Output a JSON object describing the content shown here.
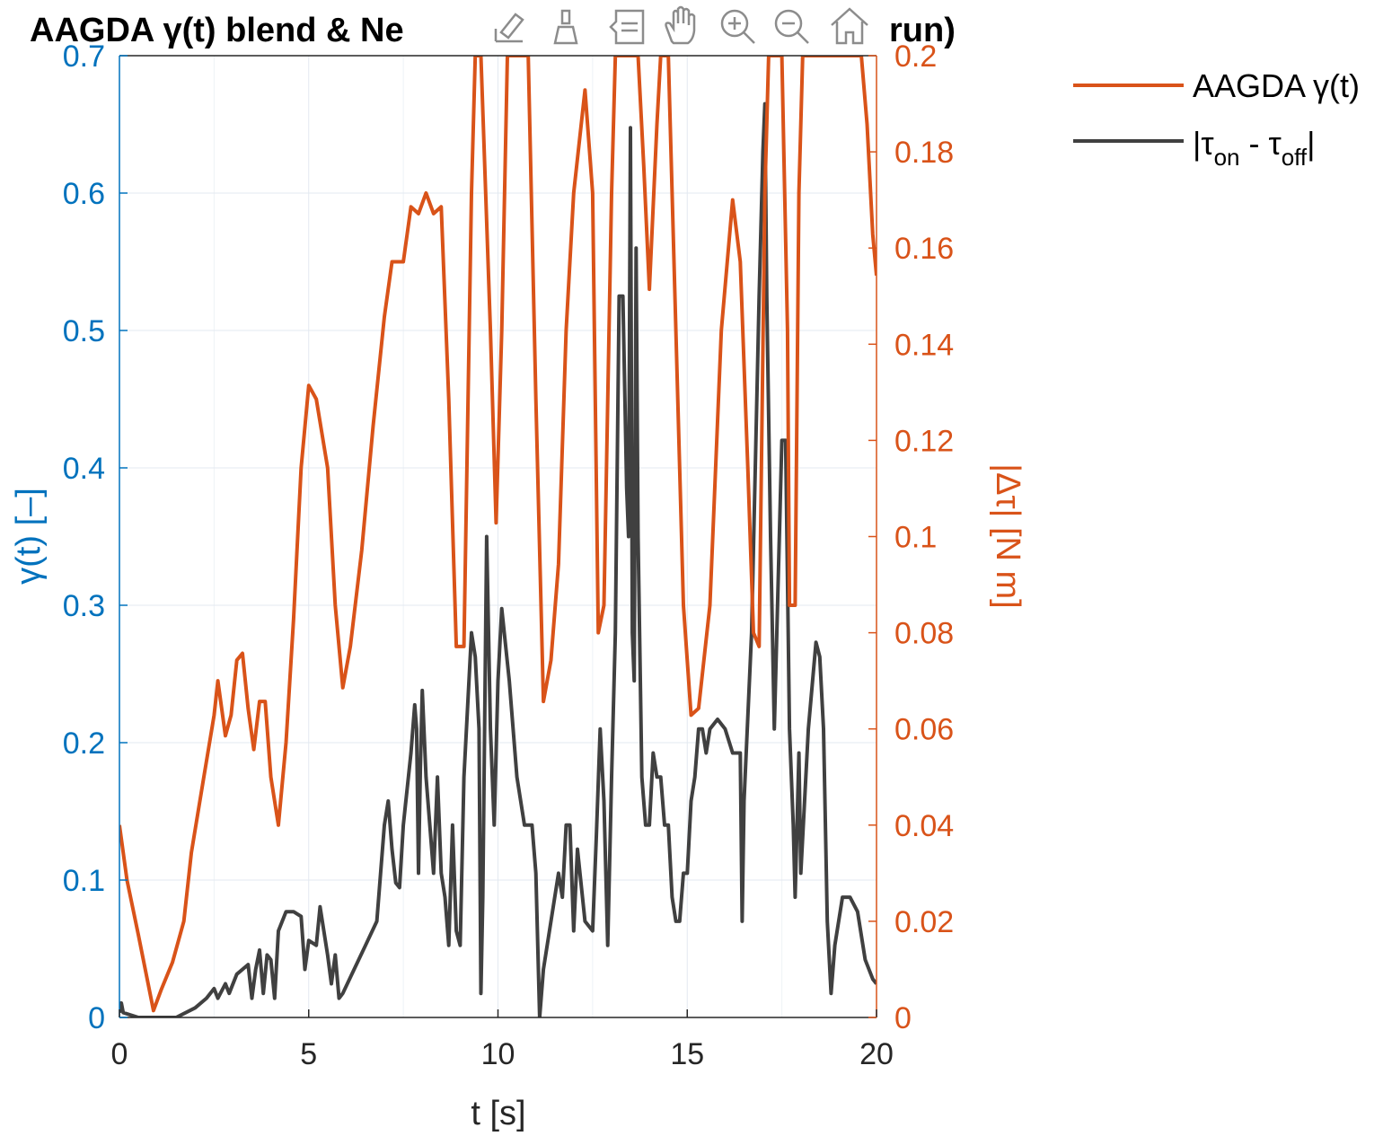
{
  "chart_data": {
    "type": "line",
    "title_left": "AAGDA γ(t) blend & Ne",
    "title_right": "run)",
    "xlabel": "t [s]",
    "ylabel_left": "γ(t) [–]",
    "ylabel_right": "|Δτ| [N m]",
    "xlim": [
      0,
      20
    ],
    "ylim_left": [
      0,
      0.7
    ],
    "ylim_right": [
      0,
      0.2
    ],
    "x_ticks": [
      "0",
      "5",
      "10",
      "15",
      "20"
    ],
    "y_left_ticks": [
      "0",
      "0.1",
      "0.2",
      "0.3",
      "0.4",
      "0.5",
      "0.6",
      "0.7"
    ],
    "y_right_ticks": [
      "0",
      "0.02",
      "0.04",
      "0.06",
      "0.08",
      "0.1",
      "0.12",
      "0.14",
      "0.16",
      "0.18",
      "0.2"
    ],
    "grid": true,
    "legend_position": "outside-right-top",
    "series": [
      {
        "name": "AAGDA γ(t)",
        "axis": "left",
        "color": "#D95319",
        "points": [
          [
            0,
            0.14
          ],
          [
            0.2,
            0.1
          ],
          [
            0.5,
            0.06
          ],
          [
            0.9,
            0.005
          ],
          [
            1.1,
            0.02
          ],
          [
            1.4,
            0.04
          ],
          [
            1.7,
            0.07
          ],
          [
            1.9,
            0.12
          ],
          [
            2.2,
            0.17
          ],
          [
            2.5,
            0.22
          ],
          [
            2.6,
            0.245
          ],
          [
            2.8,
            0.205
          ],
          [
            2.95,
            0.22
          ],
          [
            3.1,
            0.26
          ],
          [
            3.25,
            0.265
          ],
          [
            3.4,
            0.225
          ],
          [
            3.55,
            0.195
          ],
          [
            3.7,
            0.23
          ],
          [
            3.85,
            0.23
          ],
          [
            4.0,
            0.175
          ],
          [
            4.2,
            0.14
          ],
          [
            4.4,
            0.2
          ],
          [
            4.6,
            0.29
          ],
          [
            4.8,
            0.4
          ],
          [
            5.0,
            0.46
          ],
          [
            5.2,
            0.45
          ],
          [
            5.5,
            0.4
          ],
          [
            5.7,
            0.3
          ],
          [
            5.9,
            0.24
          ],
          [
            6.1,
            0.27
          ],
          [
            6.4,
            0.34
          ],
          [
            6.7,
            0.43
          ],
          [
            7.0,
            0.51
          ],
          [
            7.2,
            0.55
          ],
          [
            7.5,
            0.55
          ],
          [
            7.7,
            0.59
          ],
          [
            7.9,
            0.585
          ],
          [
            8.1,
            0.6
          ],
          [
            8.3,
            0.585
          ],
          [
            8.5,
            0.59
          ],
          [
            8.7,
            0.45
          ],
          [
            8.9,
            0.27
          ],
          [
            9.1,
            0.27
          ],
          [
            9.3,
            0.6
          ],
          [
            9.4,
            0.7
          ],
          [
            9.55,
            0.7
          ],
          [
            9.8,
            0.5
          ],
          [
            9.95,
            0.36
          ],
          [
            10.1,
            0.5
          ],
          [
            10.25,
            0.7
          ],
          [
            10.8,
            0.7
          ],
          [
            11.0,
            0.45
          ],
          [
            11.2,
            0.23
          ],
          [
            11.4,
            0.26
          ],
          [
            11.6,
            0.33
          ],
          [
            11.8,
            0.5
          ],
          [
            12.0,
            0.6
          ],
          [
            12.3,
            0.675
          ],
          [
            12.5,
            0.6
          ],
          [
            12.65,
            0.28
          ],
          [
            12.8,
            0.3
          ],
          [
            13.0,
            0.6
          ],
          [
            13.1,
            0.7
          ],
          [
            13.4,
            0.7
          ],
          [
            13.7,
            0.7
          ],
          [
            13.85,
            0.62
          ],
          [
            14.0,
            0.53
          ],
          [
            14.2,
            0.65
          ],
          [
            14.3,
            0.7
          ],
          [
            14.5,
            0.7
          ],
          [
            14.7,
            0.5
          ],
          [
            14.9,
            0.3
          ],
          [
            15.1,
            0.22
          ],
          [
            15.3,
            0.225
          ],
          [
            15.6,
            0.3
          ],
          [
            15.9,
            0.5
          ],
          [
            16.2,
            0.595
          ],
          [
            16.4,
            0.55
          ],
          [
            16.6,
            0.4
          ],
          [
            16.75,
            0.28
          ],
          [
            16.9,
            0.27
          ],
          [
            17.05,
            0.6
          ],
          [
            17.15,
            0.7
          ],
          [
            17.5,
            0.7
          ],
          [
            17.65,
            0.5
          ],
          [
            17.7,
            0.3
          ],
          [
            17.85,
            0.3
          ],
          [
            17.95,
            0.6
          ],
          [
            18.05,
            0.7
          ],
          [
            19.6,
            0.7
          ],
          [
            19.75,
            0.65
          ],
          [
            19.9,
            0.57
          ],
          [
            20.0,
            0.54
          ]
        ]
      },
      {
        "name": "|τon - τoff|",
        "axis": "right",
        "color": "#404040",
        "points": [
          [
            0,
            0.001
          ],
          [
            0.05,
            0.003
          ],
          [
            0.1,
            0.001
          ],
          [
            0.5,
            0.0
          ],
          [
            1.0,
            0.0
          ],
          [
            1.5,
            0.0
          ],
          [
            2.0,
            0.002
          ],
          [
            2.3,
            0.004
          ],
          [
            2.5,
            0.006
          ],
          [
            2.6,
            0.004
          ],
          [
            2.8,
            0.007
          ],
          [
            2.9,
            0.005
          ],
          [
            3.1,
            0.009
          ],
          [
            3.4,
            0.011
          ],
          [
            3.5,
            0.004
          ],
          [
            3.6,
            0.01
          ],
          [
            3.7,
            0.014
          ],
          [
            3.8,
            0.005
          ],
          [
            3.9,
            0.013
          ],
          [
            4.0,
            0.012
          ],
          [
            4.1,
            0.004
          ],
          [
            4.2,
            0.018
          ],
          [
            4.4,
            0.022
          ],
          [
            4.6,
            0.022
          ],
          [
            4.8,
            0.021
          ],
          [
            4.9,
            0.01
          ],
          [
            5.0,
            0.016
          ],
          [
            5.2,
            0.015
          ],
          [
            5.3,
            0.023
          ],
          [
            5.5,
            0.013
          ],
          [
            5.6,
            0.007
          ],
          [
            5.7,
            0.013
          ],
          [
            5.8,
            0.004
          ],
          [
            5.9,
            0.005
          ],
          [
            6.2,
            0.01
          ],
          [
            6.5,
            0.015
          ],
          [
            6.8,
            0.02
          ],
          [
            7.0,
            0.04
          ],
          [
            7.1,
            0.045
          ],
          [
            7.2,
            0.035
          ],
          [
            7.3,
            0.028
          ],
          [
            7.4,
            0.027
          ],
          [
            7.5,
            0.04
          ],
          [
            7.7,
            0.055
          ],
          [
            7.8,
            0.065
          ],
          [
            7.85,
            0.06
          ],
          [
            7.9,
            0.03
          ],
          [
            7.95,
            0.052
          ],
          [
            8.0,
            0.068
          ],
          [
            8.1,
            0.05
          ],
          [
            8.2,
            0.04
          ],
          [
            8.3,
            0.03
          ],
          [
            8.4,
            0.05
          ],
          [
            8.5,
            0.03
          ],
          [
            8.6,
            0.025
          ],
          [
            8.7,
            0.015
          ],
          [
            8.8,
            0.04
          ],
          [
            8.9,
            0.018
          ],
          [
            9.0,
            0.015
          ],
          [
            9.1,
            0.05
          ],
          [
            9.2,
            0.065
          ],
          [
            9.3,
            0.08
          ],
          [
            9.4,
            0.075
          ],
          [
            9.5,
            0.06
          ],
          [
            9.55,
            0.005
          ],
          [
            9.6,
            0.025
          ],
          [
            9.7,
            0.1
          ],
          [
            9.8,
            0.06
          ],
          [
            9.9,
            0.04
          ],
          [
            10.0,
            0.07
          ],
          [
            10.1,
            0.085
          ],
          [
            10.3,
            0.07
          ],
          [
            10.5,
            0.05
          ],
          [
            10.7,
            0.04
          ],
          [
            10.9,
            0.04
          ],
          [
            11.0,
            0.03
          ],
          [
            11.1,
            0.0
          ],
          [
            11.2,
            0.01
          ],
          [
            11.4,
            0.02
          ],
          [
            11.6,
            0.03
          ],
          [
            11.7,
            0.025
          ],
          [
            11.8,
            0.04
          ],
          [
            11.9,
            0.04
          ],
          [
            12.0,
            0.018
          ],
          [
            12.1,
            0.035
          ],
          [
            12.3,
            0.02
          ],
          [
            12.5,
            0.018
          ],
          [
            12.6,
            0.038
          ],
          [
            12.7,
            0.06
          ],
          [
            12.8,
            0.045
          ],
          [
            12.9,
            0.015
          ],
          [
            13.0,
            0.05
          ],
          [
            13.1,
            0.08
          ],
          [
            13.2,
            0.15
          ],
          [
            13.3,
            0.15
          ],
          [
            13.4,
            0.11
          ],
          [
            13.45,
            0.1
          ],
          [
            13.5,
            0.185
          ],
          [
            13.55,
            0.08
          ],
          [
            13.6,
            0.07
          ],
          [
            13.65,
            0.16
          ],
          [
            13.7,
            0.1
          ],
          [
            13.8,
            0.05
          ],
          [
            13.9,
            0.04
          ],
          [
            14.0,
            0.04
          ],
          [
            14.1,
            0.055
          ],
          [
            14.2,
            0.05
          ],
          [
            14.3,
            0.05
          ],
          [
            14.4,
            0.04
          ],
          [
            14.5,
            0.04
          ],
          [
            14.6,
            0.025
          ],
          [
            14.7,
            0.02
          ],
          [
            14.8,
            0.02
          ],
          [
            14.9,
            0.03
          ],
          [
            15.0,
            0.03
          ],
          [
            15.1,
            0.045
          ],
          [
            15.2,
            0.05
          ],
          [
            15.3,
            0.06
          ],
          [
            15.4,
            0.06
          ],
          [
            15.5,
            0.055
          ],
          [
            15.6,
            0.06
          ],
          [
            15.8,
            0.062
          ],
          [
            16.0,
            0.06
          ],
          [
            16.2,
            0.055
          ],
          [
            16.4,
            0.055
          ],
          [
            16.45,
            0.02
          ],
          [
            16.5,
            0.045
          ],
          [
            16.7,
            0.08
          ],
          [
            16.9,
            0.15
          ],
          [
            17.0,
            0.18
          ],
          [
            17.05,
            0.19
          ],
          [
            17.1,
            0.15
          ],
          [
            17.2,
            0.1
          ],
          [
            17.3,
            0.06
          ],
          [
            17.5,
            0.12
          ],
          [
            17.6,
            0.12
          ],
          [
            17.7,
            0.06
          ],
          [
            17.8,
            0.04
          ],
          [
            17.85,
            0.025
          ],
          [
            17.95,
            0.055
          ],
          [
            18.0,
            0.03
          ],
          [
            18.2,
            0.06
          ],
          [
            18.4,
            0.078
          ],
          [
            18.5,
            0.075
          ],
          [
            18.6,
            0.06
          ],
          [
            18.7,
            0.02
          ],
          [
            18.8,
            0.005
          ],
          [
            18.9,
            0.015
          ],
          [
            19.1,
            0.025
          ],
          [
            19.3,
            0.025
          ],
          [
            19.5,
            0.022
          ],
          [
            19.7,
            0.012
          ],
          [
            19.9,
            0.008
          ],
          [
            20.0,
            0.007
          ]
        ]
      }
    ]
  },
  "legend": {
    "items": [
      {
        "label": "AAGDA γ(t)",
        "color": "#D95319"
      },
      {
        "label_main": "|τ",
        "sub1": "on",
        "label_mid": " - τ",
        "sub2": "off",
        "label_end": "|",
        "color": "#404040"
      }
    ]
  },
  "toolbar": {
    "icons": [
      "export-icon",
      "brush-icon",
      "datatip-icon",
      "pan-icon",
      "zoom-in-icon",
      "zoom-out-icon",
      "home-icon"
    ]
  }
}
